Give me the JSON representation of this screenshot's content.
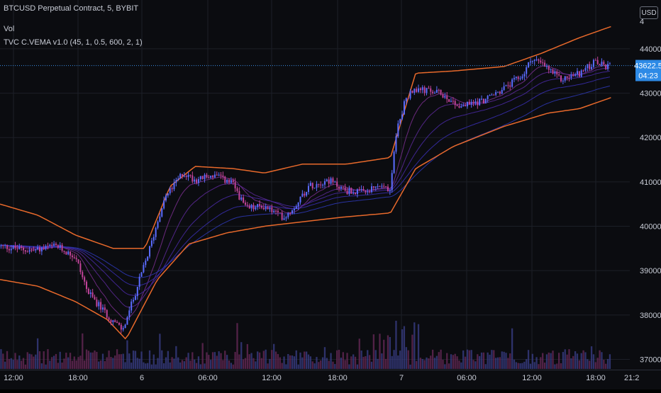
{
  "header": {
    "symbol_line": "BTCUSD Perpetual Contract, 5, BYBIT",
    "volume_label": "Vol",
    "indicator_label": "TVC C.VEMA v1.0 (45, 1, 0.5, 600, 2, 1)"
  },
  "currency_badge": "USD",
  "price_axis": {
    "ticks": [
      "44000.0",
      "43000.0",
      "42000.0",
      "41000.0",
      "40000.0",
      "39000.0",
      "38000.0",
      "37000.0"
    ],
    "top_partial": "4",
    "last_price": "43622.5",
    "countdown": "04:23"
  },
  "time_axis": {
    "ticks": [
      "12:00",
      "18:00",
      "6",
      "06:00",
      "12:00",
      "18:00",
      "7",
      "06:00",
      "12:00",
      "18:00"
    ],
    "partial_end": "21:2"
  },
  "colors": {
    "background": "#0b0c10",
    "grid": "#1c1f27",
    "candle_up": "#5b6cff",
    "candle_down": "#c2449a",
    "band": "#e8692b",
    "ema_palette": [
      "#7b2f8f",
      "#5e2a9a",
      "#4a2aa6",
      "#3a2fb3",
      "#2f3aba"
    ],
    "price_badge": "#2d8ae6",
    "last_price_line": "#3a8ee6"
  },
  "chart_data": {
    "type": "candlestick",
    "ylim": [
      36800,
      45100
    ],
    "x_ticks": [
      "12:00",
      "18:00",
      "6",
      "06:00",
      "12:00",
      "18:00",
      "7",
      "06:00",
      "12:00",
      "18:00"
    ],
    "y_ticks": [
      44000,
      43000,
      42000,
      41000,
      40000,
      39000,
      38000,
      37000
    ],
    "last_price": 43622.5,
    "price_path": [
      [
        0.0,
        39550
      ],
      [
        0.05,
        39450
      ],
      [
        0.09,
        39550
      ],
      [
        0.12,
        39300
      ],
      [
        0.14,
        38500
      ],
      [
        0.17,
        38000
      ],
      [
        0.195,
        37650
      ],
      [
        0.215,
        38500
      ],
      [
        0.24,
        39600
      ],
      [
        0.26,
        40600
      ],
      [
        0.29,
        41200
      ],
      [
        0.31,
        41050
      ],
      [
        0.34,
        41150
      ],
      [
        0.37,
        40950
      ],
      [
        0.39,
        40400
      ],
      [
        0.42,
        40450
      ],
      [
        0.45,
        40200
      ],
      [
        0.465,
        40400
      ],
      [
        0.49,
        40900
      ],
      [
        0.52,
        41050
      ],
      [
        0.55,
        40800
      ],
      [
        0.58,
        40750
      ],
      [
        0.6,
        40900
      ],
      [
        0.62,
        40850
      ],
      [
        0.63,
        42200
      ],
      [
        0.645,
        42900
      ],
      [
        0.66,
        43100
      ],
      [
        0.7,
        43000
      ],
      [
        0.73,
        42700
      ],
      [
        0.77,
        42850
      ],
      [
        0.8,
        43100
      ],
      [
        0.83,
        43400
      ],
      [
        0.845,
        43800
      ],
      [
        0.87,
        43550
      ],
      [
        0.89,
        43300
      ],
      [
        0.92,
        43450
      ],
      [
        0.945,
        43700
      ],
      [
        0.96,
        43600
      ],
      [
        1.0,
        43622.5
      ]
    ],
    "upper_band": [
      [
        0.0,
        40500
      ],
      [
        0.06,
        40250
      ],
      [
        0.12,
        39800
      ],
      [
        0.18,
        39500
      ],
      [
        0.23,
        39500
      ],
      [
        0.27,
        40900
      ],
      [
        0.31,
        41350
      ],
      [
        0.37,
        41300
      ],
      [
        0.42,
        41200
      ],
      [
        0.48,
        41400
      ],
      [
        0.55,
        41400
      ],
      [
        0.62,
        41550
      ],
      [
        0.66,
        43450
      ],
      [
        0.72,
        43500
      ],
      [
        0.8,
        43600
      ],
      [
        0.86,
        43900
      ],
      [
        0.92,
        44250
      ],
      [
        0.97,
        44500
      ]
    ],
    "lower_band": [
      [
        0.0,
        38800
      ],
      [
        0.06,
        38650
      ],
      [
        0.12,
        38300
      ],
      [
        0.17,
        37900
      ],
      [
        0.2,
        37450
      ],
      [
        0.25,
        38800
      ],
      [
        0.3,
        39600
      ],
      [
        0.36,
        39850
      ],
      [
        0.42,
        40000
      ],
      [
        0.48,
        40100
      ],
      [
        0.54,
        40200
      ],
      [
        0.62,
        40300
      ],
      [
        0.66,
        41300
      ],
      [
        0.72,
        41800
      ],
      [
        0.8,
        42250
      ],
      [
        0.87,
        42550
      ],
      [
        0.92,
        42650
      ],
      [
        0.97,
        42900
      ]
    ],
    "x_extent": [
      0.0,
      0.97
    ]
  }
}
